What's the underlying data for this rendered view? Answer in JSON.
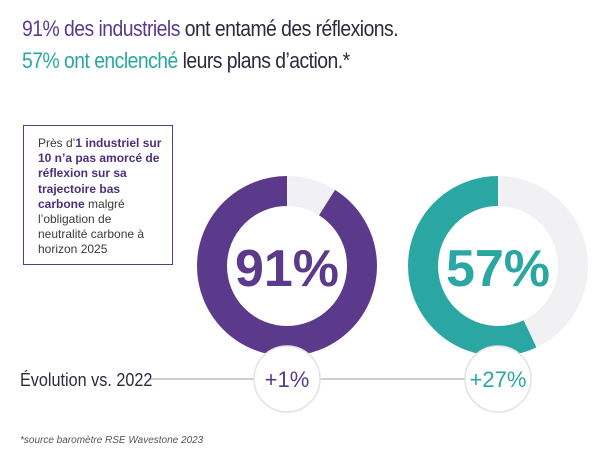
{
  "headline": {
    "line1_pct": "91% des industriels",
    "line1_rest": " ont entamé des réflexions.",
    "line2_pct": "57% ont enclenché",
    "line2_rest": " leurs plans d’action.*"
  },
  "note": {
    "pre": "Près d’",
    "bold": "1 industriel sur 10 n’a pas amorcé de réflexion sur sa trajectoire bas carbone",
    "post": " malgré l’obligation de neutralité carbone à horizon 2025"
  },
  "evolution_label": "Évolution vs. 2022",
  "source": "*source baromètre RSE Wavestone 2023",
  "colors": {
    "purple": "#5b3a8c",
    "teal": "#2aa7a3",
    "track": "#f1f1f3"
  },
  "chart_data": [
    {
      "type": "pie",
      "label": "91%",
      "value": 91,
      "total": 100,
      "change": "+1%",
      "color": "#5b3a8c"
    },
    {
      "type": "pie",
      "label": "57%",
      "value": 57,
      "total": 100,
      "change": "+27%",
      "color": "#2aa7a3"
    }
  ]
}
